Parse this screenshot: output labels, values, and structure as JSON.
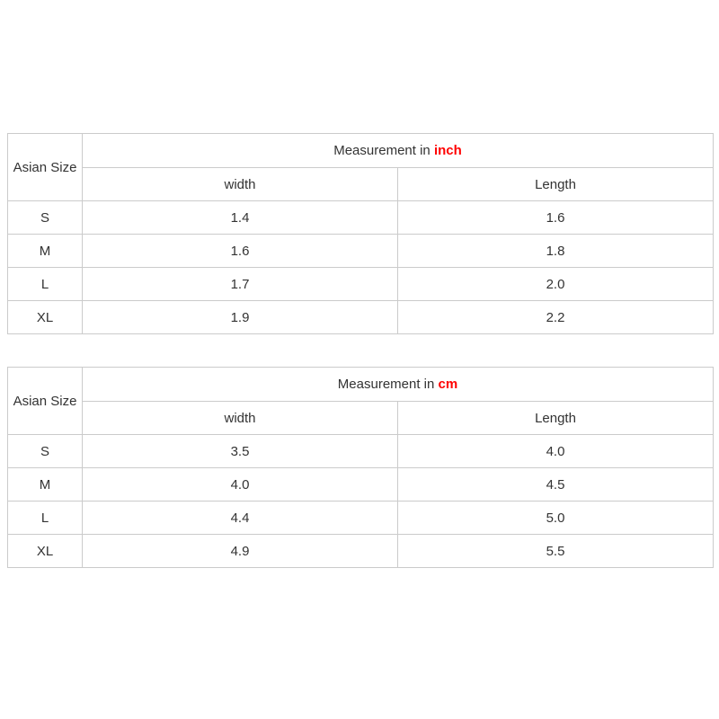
{
  "colors": {
    "page_background": "#ffffff",
    "header_background": "#f1f1f1",
    "border": "#cbcbcb",
    "text": "#333333",
    "unit_accent": "#ff0000"
  },
  "chart_data": [
    {
      "type": "table",
      "title": "Measurement in inch",
      "title_prefix": "Measurement in",
      "unit": "inch",
      "corner_label": "Asian Size",
      "columns": [
        "width",
        "Length"
      ],
      "rows": [
        [
          "S",
          "1.4",
          "1.6"
        ],
        [
          "M",
          "1.6",
          "1.8"
        ],
        [
          "L",
          "1.7",
          "2.0"
        ],
        [
          "XL",
          "1.9",
          "2.2"
        ]
      ]
    },
    {
      "type": "table",
      "title": "Measurement in cm",
      "title_prefix": "Measurement in",
      "unit": "cm",
      "corner_label": "Asian Size",
      "columns": [
        "width",
        "Length"
      ],
      "rows": [
        [
          "S",
          "3.5",
          "4.0"
        ],
        [
          "M",
          "4.0",
          "4.5"
        ],
        [
          "L",
          "4.4",
          "5.0"
        ],
        [
          "XL",
          "4.9",
          "5.5"
        ]
      ]
    }
  ]
}
